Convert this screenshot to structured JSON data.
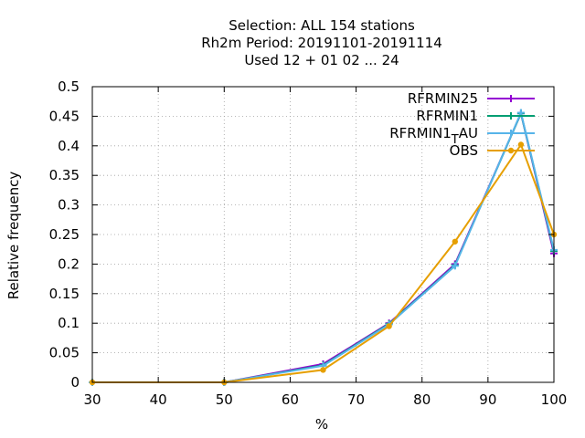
{
  "chart_data": {
    "type": "line",
    "title_lines": [
      "Selection: ALL    154 stations",
      "Rh2m  Period: 20191101-20191114",
      "Used  12 + 01 02 ... 24"
    ],
    "xlabel": "%",
    "ylabel": "Relative frequency",
    "xlim": [
      30,
      100
    ],
    "ylim": [
      0,
      0.5
    ],
    "xticks": [
      30,
      40,
      50,
      60,
      70,
      80,
      90,
      100
    ],
    "yticks": [
      0,
      0.05,
      0.1,
      0.15,
      0.2,
      0.25,
      0.3,
      0.35,
      0.4,
      0.45,
      0.5
    ],
    "ytick_labels": [
      "0",
      "0.05",
      "0.1",
      "0.15",
      "0.2",
      "0.25",
      "0.3",
      "0.35",
      "0.4",
      "0.45",
      "0.5"
    ],
    "grid": true,
    "legend_position": "top-right",
    "series": [
      {
        "name": "RFRMIN25",
        "color": "#9400d3",
        "marker": "plus",
        "x": [
          30,
          50,
          65,
          75,
          85,
          95,
          100
        ],
        "y": [
          0,
          0,
          0.031,
          0.1,
          0.2,
          0.455,
          0.218
        ]
      },
      {
        "name": "RFRMIN1",
        "color": "#009e73",
        "marker": "plus",
        "x": [
          30,
          50,
          65,
          75,
          85,
          95,
          100
        ],
        "y": [
          0,
          0,
          0.029,
          0.099,
          0.198,
          0.455,
          0.222
        ]
      },
      {
        "name": "RFRMIN1",
        "name_subscript": "T",
        "name_suffix": "AU",
        "color": "#56b4e9",
        "marker": "plus",
        "x": [
          30,
          50,
          65,
          75,
          85,
          95,
          100
        ],
        "y": [
          0,
          0,
          0.028,
          0.098,
          0.197,
          0.456,
          0.224
        ]
      },
      {
        "name": "OBS",
        "color": "#e69f00",
        "marker": "circle",
        "x": [
          30,
          50,
          65,
          75,
          85,
          95,
          100
        ],
        "y": [
          0,
          0,
          0.021,
          0.095,
          0.238,
          0.402,
          0.25
        ]
      }
    ]
  }
}
